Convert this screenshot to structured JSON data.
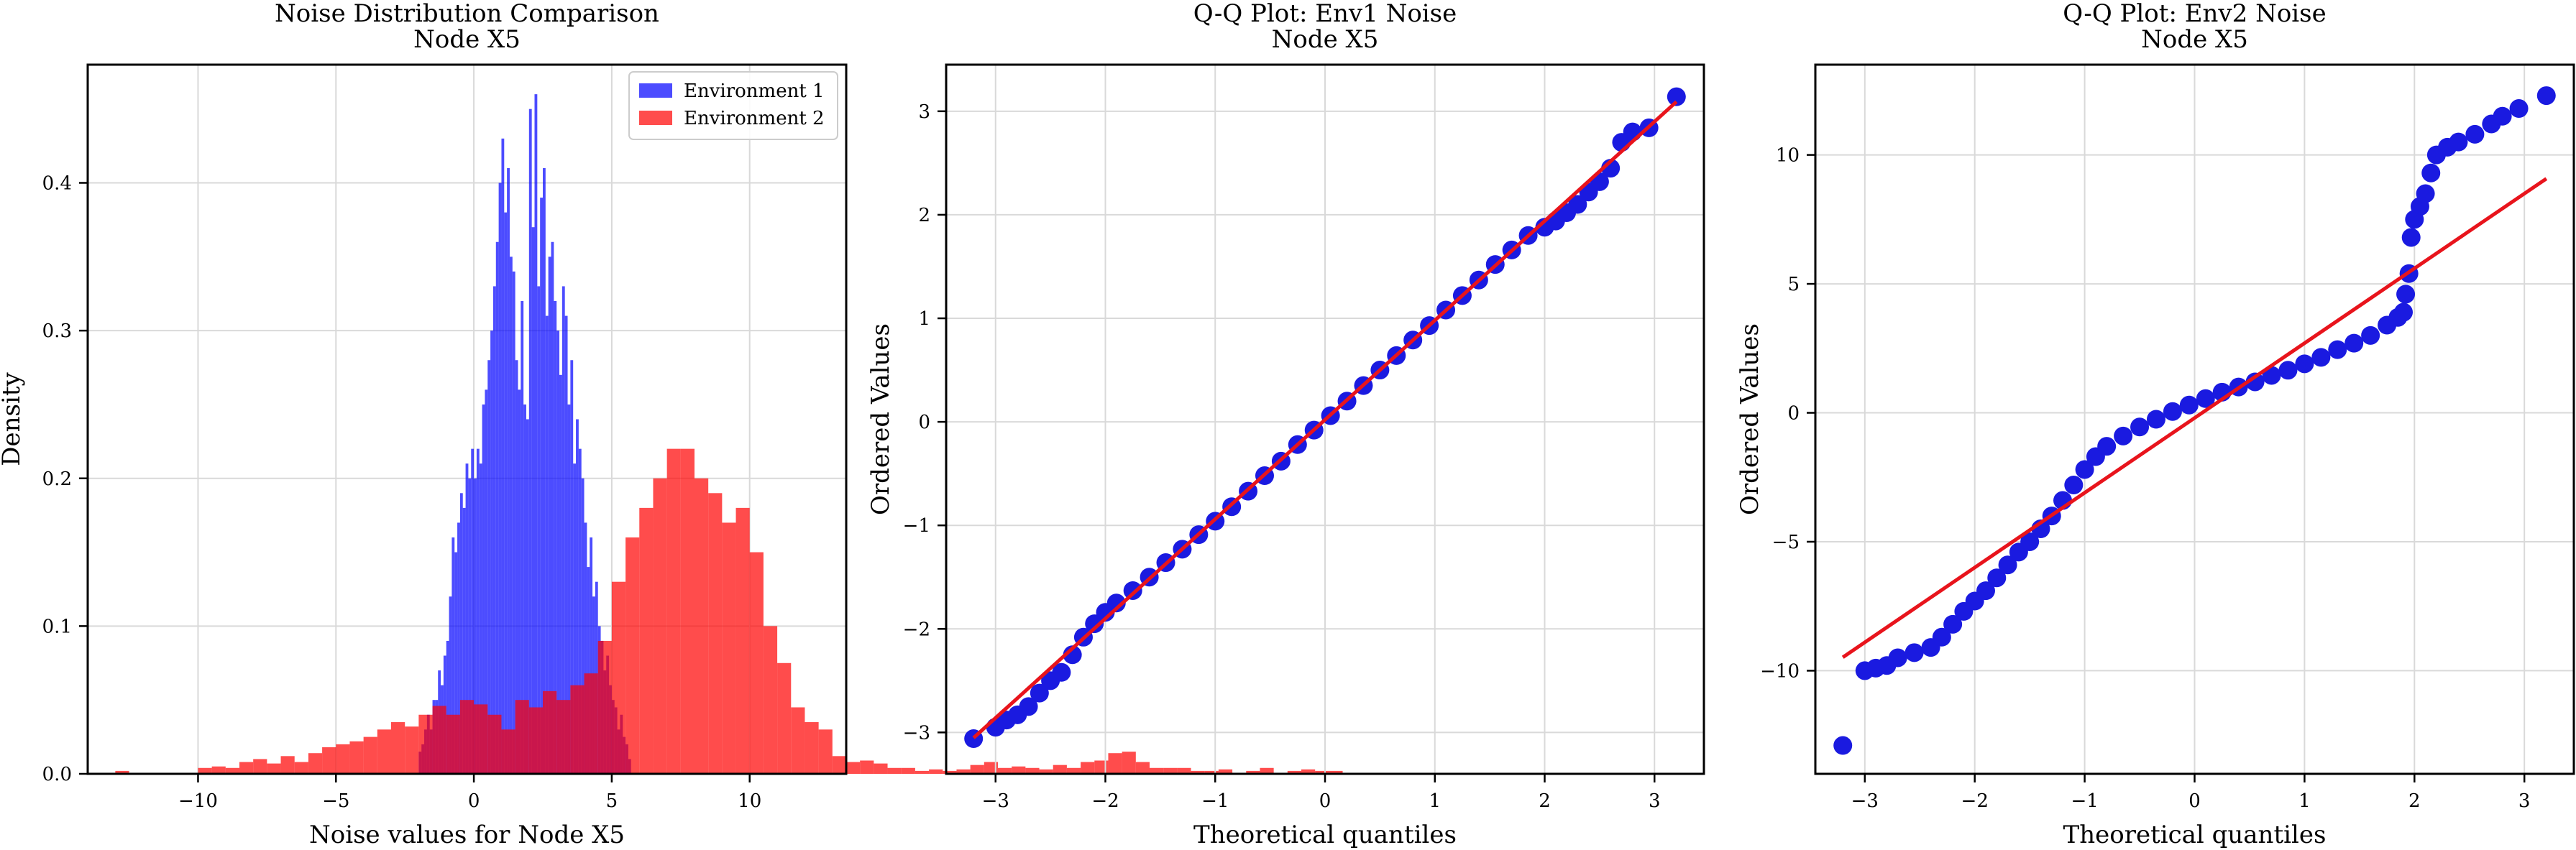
{
  "colors": {
    "env1": "#0000ff",
    "env2": "#ff0000",
    "fit_line": "#e8141c",
    "points": "#1a1ae0",
    "grid": "#d9d9d9"
  },
  "chart_data": [
    {
      "type": "histogram",
      "title": "Noise Distribution Comparison",
      "subtitle": "Node X5",
      "xlabel": "Noise values for Node X5",
      "ylabel": "Density",
      "xlim": [
        -14.0,
        13.5
      ],
      "ylim": [
        0,
        0.48
      ],
      "xticks": [
        -10,
        -5,
        0,
        5,
        10
      ],
      "yticks": [
        0.0,
        0.1,
        0.2,
        0.3,
        0.4
      ],
      "ytick_labels": [
        "0.0",
        "0.1",
        "0.2",
        "0.3",
        "0.4"
      ],
      "grid": true,
      "legend": "top-right",
      "series": [
        {
          "name": "Environment 1",
          "color": "#0000ff",
          "alpha": 0.7,
          "bin_start": -2.0,
          "bin_width": 0.1,
          "values": [
            0.015,
            0.02,
            0.03,
            0.04,
            0.03,
            0.05,
            0.05,
            0.07,
            0.06,
            0.08,
            0.09,
            0.12,
            0.16,
            0.15,
            0.17,
            0.19,
            0.18,
            0.21,
            0.2,
            0.22,
            0.2,
            0.22,
            0.21,
            0.25,
            0.26,
            0.28,
            0.3,
            0.33,
            0.36,
            0.4,
            0.43,
            0.38,
            0.41,
            0.35,
            0.34,
            0.28,
            0.26,
            0.32,
            0.25,
            0.24,
            0.45,
            0.37,
            0.46,
            0.33,
            0.39,
            0.41,
            0.31,
            0.35,
            0.36,
            0.32,
            0.3,
            0.27,
            0.33,
            0.31,
            0.25,
            0.28,
            0.21,
            0.24,
            0.22,
            0.2,
            0.17,
            0.14,
            0.16,
            0.12,
            0.13,
            0.1,
            0.09,
            0.07,
            0.08,
            0.06,
            0.05,
            0.045,
            0.03,
            0.04,
            0.025,
            0.02,
            0.01
          ]
        },
        {
          "name": "Environment 2",
          "color": "#ff0000",
          "alpha": 0.7,
          "bin_start": -13.0,
          "bin_width": 0.5,
          "values": [
            0.002,
            0,
            0,
            0,
            0,
            0,
            0.004,
            0.005,
            0.004,
            0.008,
            0.01,
            0.007,
            0.012,
            0.008,
            0.014,
            0.018,
            0.02,
            0.022,
            0.025,
            0.03,
            0.035,
            0.032,
            0.04,
            0.046,
            0.04,
            0.05,
            0.047,
            0.04,
            0.03,
            0.05,
            0.045,
            0.056,
            0.05,
            0.06,
            0.068,
            0.09,
            0.13,
            0.16,
            0.18,
            0.2,
            0.22,
            0.22,
            0.2,
            0.19,
            0.17,
            0.18,
            0.15,
            0.1,
            0.075,
            0.045,
            0.035,
            0.03,
            0.012,
            0.008,
            0.009,
            0.007,
            0.004,
            0.004,
            0.002,
            0.003,
            0.002,
            0.003,
            0.006,
            0.008,
            0.004,
            0.005,
            0.004,
            0.003,
            0.006,
            0.004,
            0.008,
            0.009,
            0.014,
            0.015,
            0.008,
            0.004,
            0.004,
            0.004,
            0.002,
            0.002,
            0.003,
            0,
            0.002,
            0.004,
            0,
            0.002,
            0.003,
            0.002,
            0.002
          ]
        }
      ]
    },
    {
      "type": "scatter",
      "title": "Q-Q Plot: Env1 Noise",
      "subtitle": "Node X5",
      "xlabel": "Theoretical quantiles",
      "ylabel": "Ordered Values",
      "xlim": [
        -3.45,
        3.45
      ],
      "ylim": [
        -3.4,
        3.45
      ],
      "xticks": [
        -3,
        -2,
        -1,
        0,
        1,
        2,
        3
      ],
      "yticks": [
        -3,
        -2,
        -1,
        0,
        1,
        2,
        3
      ],
      "grid": true,
      "fit_line": {
        "slope": 0.96,
        "intercept": 0.02,
        "x_range": [
          -3.2,
          3.2
        ]
      },
      "quantile_points": [
        [
          -3.2,
          -3.06
        ],
        [
          -3.0,
          -2.95
        ],
        [
          -2.9,
          -2.88
        ],
        [
          -2.8,
          -2.83
        ],
        [
          -2.7,
          -2.75
        ],
        [
          -2.6,
          -2.62
        ],
        [
          -2.5,
          -2.5
        ],
        [
          -2.4,
          -2.42
        ],
        [
          -2.3,
          -2.25
        ],
        [
          -2.2,
          -2.08
        ],
        [
          -2.1,
          -1.95
        ],
        [
          -2.0,
          -1.84
        ],
        [
          -1.9,
          -1.75
        ],
        [
          -1.75,
          -1.63
        ],
        [
          -1.6,
          -1.5
        ],
        [
          -1.45,
          -1.36
        ],
        [
          -1.3,
          -1.23
        ],
        [
          -1.15,
          -1.09
        ],
        [
          -1.0,
          -0.96
        ],
        [
          -0.85,
          -0.82
        ],
        [
          -0.7,
          -0.67
        ],
        [
          -0.55,
          -0.52
        ],
        [
          -0.4,
          -0.38
        ],
        [
          -0.25,
          -0.22
        ],
        [
          -0.1,
          -0.08
        ],
        [
          0.05,
          0.06
        ],
        [
          0.2,
          0.2
        ],
        [
          0.35,
          0.35
        ],
        [
          0.5,
          0.5
        ],
        [
          0.65,
          0.64
        ],
        [
          0.8,
          0.79
        ],
        [
          0.95,
          0.93
        ],
        [
          1.1,
          1.08
        ],
        [
          1.25,
          1.22
        ],
        [
          1.4,
          1.37
        ],
        [
          1.55,
          1.52
        ],
        [
          1.7,
          1.66
        ],
        [
          1.85,
          1.8
        ],
        [
          2.0,
          1.88
        ],
        [
          2.1,
          1.94
        ],
        [
          2.2,
          2.02
        ],
        [
          2.3,
          2.1
        ],
        [
          2.4,
          2.22
        ],
        [
          2.5,
          2.32
        ],
        [
          2.6,
          2.45
        ],
        [
          2.7,
          2.7
        ],
        [
          2.8,
          2.8
        ],
        [
          2.95,
          2.84
        ],
        [
          3.2,
          3.14
        ]
      ]
    },
    {
      "type": "scatter",
      "title": "Q-Q Plot: Env2 Noise",
      "subtitle": "Node X5",
      "xlabel": "Theoretical quantiles",
      "ylabel": "Ordered Values",
      "xlim": [
        -3.45,
        3.45
      ],
      "ylim": [
        -14.0,
        13.5
      ],
      "xticks": [
        -3,
        -2,
        -1,
        0,
        1,
        2,
        3
      ],
      "yticks": [
        -10,
        -5,
        0,
        5,
        10
      ],
      "grid": true,
      "fit_line": {
        "slope": 2.9,
        "intercept": -0.2,
        "x_range": [
          -3.2,
          3.2
        ]
      },
      "quantile_points": [
        [
          -3.2,
          -12.9
        ],
        [
          -3.0,
          -10.0
        ],
        [
          -2.9,
          -9.9
        ],
        [
          -2.8,
          -9.8
        ],
        [
          -2.7,
          -9.5
        ],
        [
          -2.55,
          -9.3
        ],
        [
          -2.4,
          -9.1
        ],
        [
          -2.3,
          -8.7
        ],
        [
          -2.2,
          -8.2
        ],
        [
          -2.1,
          -7.7
        ],
        [
          -2.0,
          -7.3
        ],
        [
          -1.9,
          -6.9
        ],
        [
          -1.8,
          -6.4
        ],
        [
          -1.7,
          -5.9
        ],
        [
          -1.6,
          -5.4
        ],
        [
          -1.5,
          -5.0
        ],
        [
          -1.4,
          -4.5
        ],
        [
          -1.3,
          -4.0
        ],
        [
          -1.2,
          -3.4
        ],
        [
          -1.1,
          -2.8
        ],
        [
          -1.0,
          -2.2
        ],
        [
          -0.9,
          -1.7
        ],
        [
          -0.8,
          -1.3
        ],
        [
          -0.65,
          -0.9
        ],
        [
          -0.5,
          -0.55
        ],
        [
          -0.35,
          -0.25
        ],
        [
          -0.2,
          0.05
        ],
        [
          -0.05,
          0.3
        ],
        [
          0.1,
          0.55
        ],
        [
          0.25,
          0.8
        ],
        [
          0.4,
          1.0
        ],
        [
          0.55,
          1.2
        ],
        [
          0.7,
          1.45
        ],
        [
          0.85,
          1.65
        ],
        [
          1.0,
          1.9
        ],
        [
          1.15,
          2.15
        ],
        [
          1.3,
          2.45
        ],
        [
          1.45,
          2.7
        ],
        [
          1.6,
          3.0
        ],
        [
          1.75,
          3.4
        ],
        [
          1.85,
          3.7
        ],
        [
          1.9,
          3.9
        ],
        [
          1.92,
          4.6
        ],
        [
          1.95,
          5.4
        ],
        [
          1.97,
          6.8
        ],
        [
          2.0,
          7.5
        ],
        [
          2.05,
          8.0
        ],
        [
          2.1,
          8.5
        ],
        [
          2.15,
          9.3
        ],
        [
          2.2,
          10.0
        ],
        [
          2.3,
          10.3
        ],
        [
          2.4,
          10.5
        ],
        [
          2.55,
          10.8
        ],
        [
          2.7,
          11.2
        ],
        [
          2.8,
          11.5
        ],
        [
          2.95,
          11.8
        ],
        [
          3.2,
          12.3
        ]
      ]
    }
  ]
}
